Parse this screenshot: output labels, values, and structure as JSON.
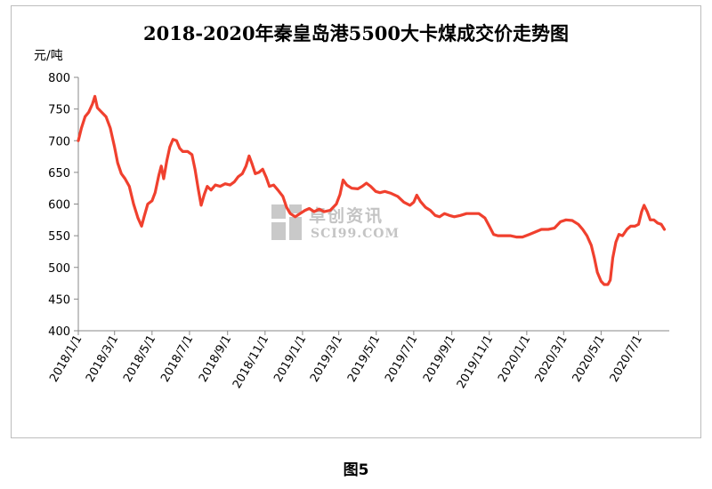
{
  "caption": "图5",
  "watermark": {
    "cn": "卓创资讯",
    "en": "SCI99.COM"
  },
  "chart_data": {
    "type": "line",
    "title": "2018-2020年秦皇岛港5500大卡煤成交价走势图",
    "unit_label": "元/吨",
    "ylim": [
      400,
      800
    ],
    "y_ticks": [
      "400",
      "450",
      "500",
      "550",
      "600",
      "650",
      "700",
      "750",
      "800"
    ],
    "xlim": [
      "2018-01-01",
      "2020-08-20"
    ],
    "x_ticks": [
      "2018/1/1",
      "2018/3/1",
      "2018/5/1",
      "2018/7/1",
      "2018/9/1",
      "2018/11/1",
      "2019/1/1",
      "2019/3/1",
      "2019/5/1",
      "2019/7/1",
      "2019/9/1",
      "2019/11/1",
      "2020/1/1",
      "2020/3/1",
      "2020/5/1",
      "2020/7/1"
    ],
    "grid": false,
    "line_color": "#f0402e",
    "series": [
      {
        "values": [
          [
            "2018-01-01",
            700
          ],
          [
            "2018-01-06",
            720
          ],
          [
            "2018-01-12",
            738
          ],
          [
            "2018-01-18",
            745
          ],
          [
            "2018-01-24",
            758
          ],
          [
            "2018-01-28",
            770
          ],
          [
            "2018-02-01",
            752
          ],
          [
            "2018-02-08",
            745
          ],
          [
            "2018-02-15",
            738
          ],
          [
            "2018-02-22",
            720
          ],
          [
            "2018-03-01",
            690
          ],
          [
            "2018-03-06",
            665
          ],
          [
            "2018-03-12",
            648
          ],
          [
            "2018-03-18",
            640
          ],
          [
            "2018-03-25",
            628
          ],
          [
            "2018-04-01",
            600
          ],
          [
            "2018-04-08",
            578
          ],
          [
            "2018-04-14",
            565
          ],
          [
            "2018-04-18",
            580
          ],
          [
            "2018-04-24",
            600
          ],
          [
            "2018-05-01",
            605
          ],
          [
            "2018-05-06",
            618
          ],
          [
            "2018-05-12",
            645
          ],
          [
            "2018-05-16",
            660
          ],
          [
            "2018-05-20",
            640
          ],
          [
            "2018-05-25",
            668
          ],
          [
            "2018-05-30",
            690
          ],
          [
            "2018-06-04",
            702
          ],
          [
            "2018-06-10",
            700
          ],
          [
            "2018-06-15",
            688
          ],
          [
            "2018-06-20",
            683
          ],
          [
            "2018-06-28",
            683
          ],
          [
            "2018-07-05",
            678
          ],
          [
            "2018-07-10",
            655
          ],
          [
            "2018-07-15",
            625
          ],
          [
            "2018-07-20",
            598
          ],
          [
            "2018-07-25",
            615
          ],
          [
            "2018-07-30",
            628
          ],
          [
            "2018-08-05",
            622
          ],
          [
            "2018-08-12",
            630
          ],
          [
            "2018-08-20",
            628
          ],
          [
            "2018-08-28",
            632
          ],
          [
            "2018-09-05",
            630
          ],
          [
            "2018-09-12",
            635
          ],
          [
            "2018-09-18",
            643
          ],
          [
            "2018-09-25",
            648
          ],
          [
            "2018-10-01",
            660
          ],
          [
            "2018-10-06",
            676
          ],
          [
            "2018-10-11",
            663
          ],
          [
            "2018-10-16",
            648
          ],
          [
            "2018-10-22",
            650
          ],
          [
            "2018-10-28",
            655
          ],
          [
            "2018-11-03",
            642
          ],
          [
            "2018-11-08",
            628
          ],
          [
            "2018-11-15",
            630
          ],
          [
            "2018-11-22",
            622
          ],
          [
            "2018-11-30",
            612
          ],
          [
            "2018-12-06",
            595
          ],
          [
            "2018-12-12",
            585
          ],
          [
            "2018-12-20",
            580
          ],
          [
            "2018-12-28",
            585
          ],
          [
            "2019-01-05",
            590
          ],
          [
            "2019-01-12",
            593
          ],
          [
            "2019-01-20",
            588
          ],
          [
            "2019-01-28",
            592
          ],
          [
            "2019-02-05",
            588
          ],
          [
            "2019-02-15",
            590
          ],
          [
            "2019-02-25",
            600
          ],
          [
            "2019-03-03",
            615
          ],
          [
            "2019-03-08",
            638
          ],
          [
            "2019-03-14",
            630
          ],
          [
            "2019-03-22",
            625
          ],
          [
            "2019-04-01",
            624
          ],
          [
            "2019-04-08",
            628
          ],
          [
            "2019-04-15",
            633
          ],
          [
            "2019-04-22",
            628
          ],
          [
            "2019-04-30",
            620
          ],
          [
            "2019-05-07",
            618
          ],
          [
            "2019-05-15",
            620
          ],
          [
            "2019-05-25",
            617
          ],
          [
            "2019-06-05",
            612
          ],
          [
            "2019-06-15",
            603
          ],
          [
            "2019-06-25",
            598
          ],
          [
            "2019-07-01",
            603
          ],
          [
            "2019-07-06",
            614
          ],
          [
            "2019-07-12",
            604
          ],
          [
            "2019-07-20",
            595
          ],
          [
            "2019-07-28",
            590
          ],
          [
            "2019-08-05",
            582
          ],
          [
            "2019-08-12",
            580
          ],
          [
            "2019-08-20",
            585
          ],
          [
            "2019-08-28",
            582
          ],
          [
            "2019-09-05",
            580
          ],
          [
            "2019-09-15",
            582
          ],
          [
            "2019-09-25",
            585
          ],
          [
            "2019-10-05",
            585
          ],
          [
            "2019-10-15",
            585
          ],
          [
            "2019-10-25",
            578
          ],
          [
            "2019-11-01",
            565
          ],
          [
            "2019-11-08",
            552
          ],
          [
            "2019-11-15",
            550
          ],
          [
            "2019-11-25",
            550
          ],
          [
            "2019-12-05",
            550
          ],
          [
            "2019-12-15",
            548
          ],
          [
            "2019-12-25",
            548
          ],
          [
            "2020-01-05",
            552
          ],
          [
            "2020-01-15",
            556
          ],
          [
            "2020-01-25",
            560
          ],
          [
            "2020-02-05",
            560
          ],
          [
            "2020-02-15",
            562
          ],
          [
            "2020-02-25",
            572
          ],
          [
            "2020-03-05",
            575
          ],
          [
            "2020-03-15",
            574
          ],
          [
            "2020-03-25",
            568
          ],
          [
            "2020-04-01",
            560
          ],
          [
            "2020-04-08",
            550
          ],
          [
            "2020-04-15",
            535
          ],
          [
            "2020-04-20",
            515
          ],
          [
            "2020-04-25",
            492
          ],
          [
            "2020-05-01",
            478
          ],
          [
            "2020-05-06",
            473
          ],
          [
            "2020-05-12",
            473
          ],
          [
            "2020-05-16",
            480
          ],
          [
            "2020-05-20",
            515
          ],
          [
            "2020-05-25",
            540
          ],
          [
            "2020-05-30",
            552
          ],
          [
            "2020-06-05",
            550
          ],
          [
            "2020-06-12",
            560
          ],
          [
            "2020-06-18",
            565
          ],
          [
            "2020-06-25",
            565
          ],
          [
            "2020-07-01",
            568
          ],
          [
            "2020-07-06",
            588
          ],
          [
            "2020-07-10",
            598
          ],
          [
            "2020-07-15",
            588
          ],
          [
            "2020-07-20",
            575
          ],
          [
            "2020-07-26",
            575
          ],
          [
            "2020-08-01",
            570
          ],
          [
            "2020-08-07",
            568
          ],
          [
            "2020-08-12",
            560
          ]
        ]
      }
    ]
  }
}
